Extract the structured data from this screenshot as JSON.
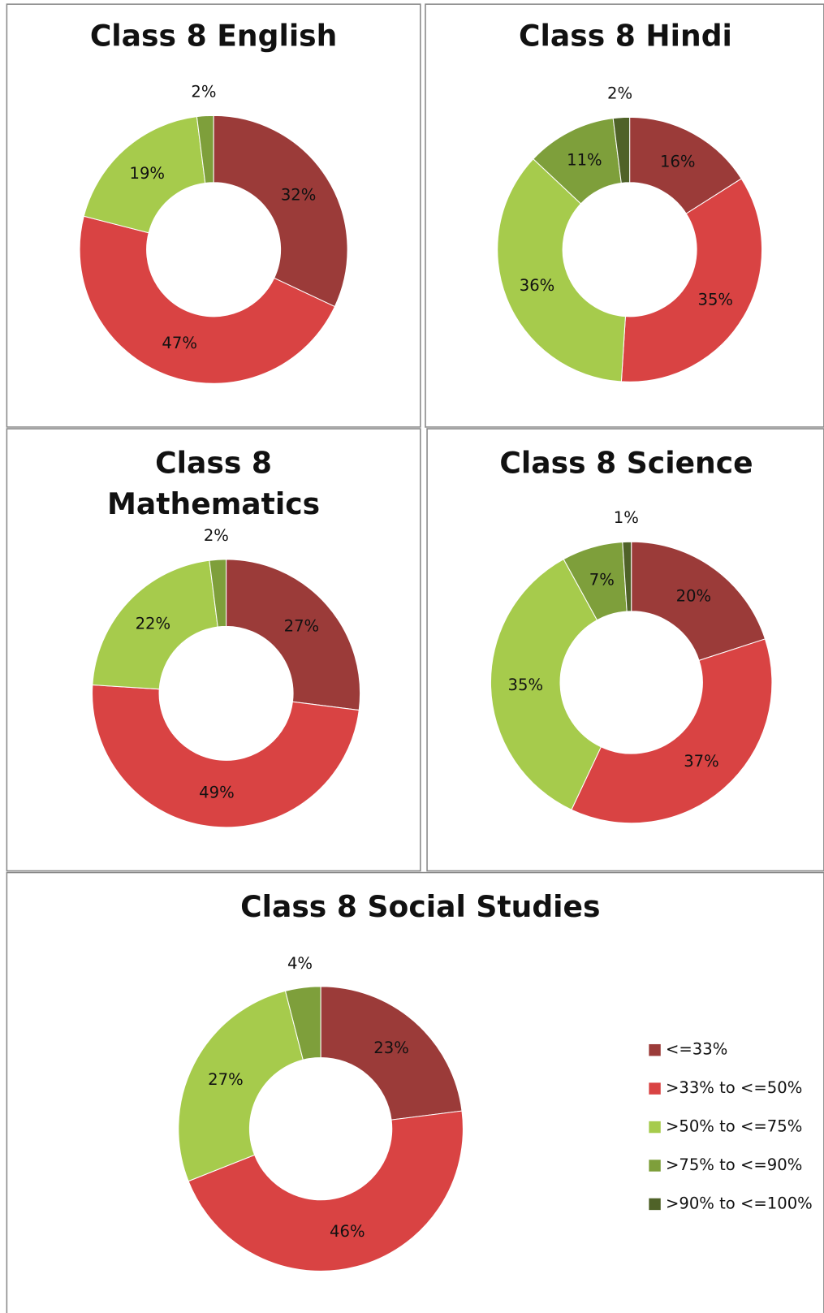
{
  "chart_data": [
    {
      "type": "donut",
      "title": "Class 8 English",
      "values": [
        32,
        47,
        19,
        2,
        0
      ],
      "value_labels": [
        "32%",
        "47%",
        "19%",
        "2%",
        null
      ],
      "colors": [
        "#9b3b39",
        "#d94343",
        "#a6cb4c",
        "#7e9f3b",
        "#4f6228"
      ]
    },
    {
      "type": "donut",
      "title": "Class 8 Hindi",
      "values": [
        16,
        35,
        36,
        11,
        2
      ],
      "value_labels": [
        "16%",
        "35%",
        "36%",
        "11%",
        "2%"
      ],
      "colors": [
        "#9b3b39",
        "#d94343",
        "#a6cb4c",
        "#7e9f3b",
        "#4f6228"
      ]
    },
    {
      "type": "donut",
      "title": "Class 8 Mathematics",
      "values": [
        27,
        49,
        22,
        2,
        0
      ],
      "value_labels": [
        "27%",
        "49%",
        "22%",
        "2%",
        null
      ],
      "colors": [
        "#9b3b39",
        "#d94343",
        "#a6cb4c",
        "#7e9f3b",
        "#4f6228"
      ]
    },
    {
      "type": "donut",
      "title": "Class 8 Science",
      "values": [
        20,
        37,
        35,
        7,
        1
      ],
      "value_labels": [
        "20%",
        "37%",
        "35%",
        "7%",
        "1%"
      ],
      "colors": [
        "#9b3b39",
        "#d94343",
        "#a6cb4c",
        "#7e9f3b",
        "#4f6228"
      ]
    },
    {
      "type": "donut",
      "title": "Class 8 Social Studies",
      "categories": [
        "<=33%",
        ">33% to <=50%",
        ">50% to <=75%",
        ">75% to <=90%",
        ">90% to <=100%"
      ],
      "values": [
        23,
        46,
        27,
        4,
        0
      ],
      "value_labels": [
        "23%",
        "46%",
        "27%",
        "4%",
        null
      ],
      "colors": [
        "#9b3b39",
        "#d94343",
        "#a6cb4c",
        "#7e9f3b",
        "#4f6228"
      ],
      "legend": "right"
    }
  ]
}
